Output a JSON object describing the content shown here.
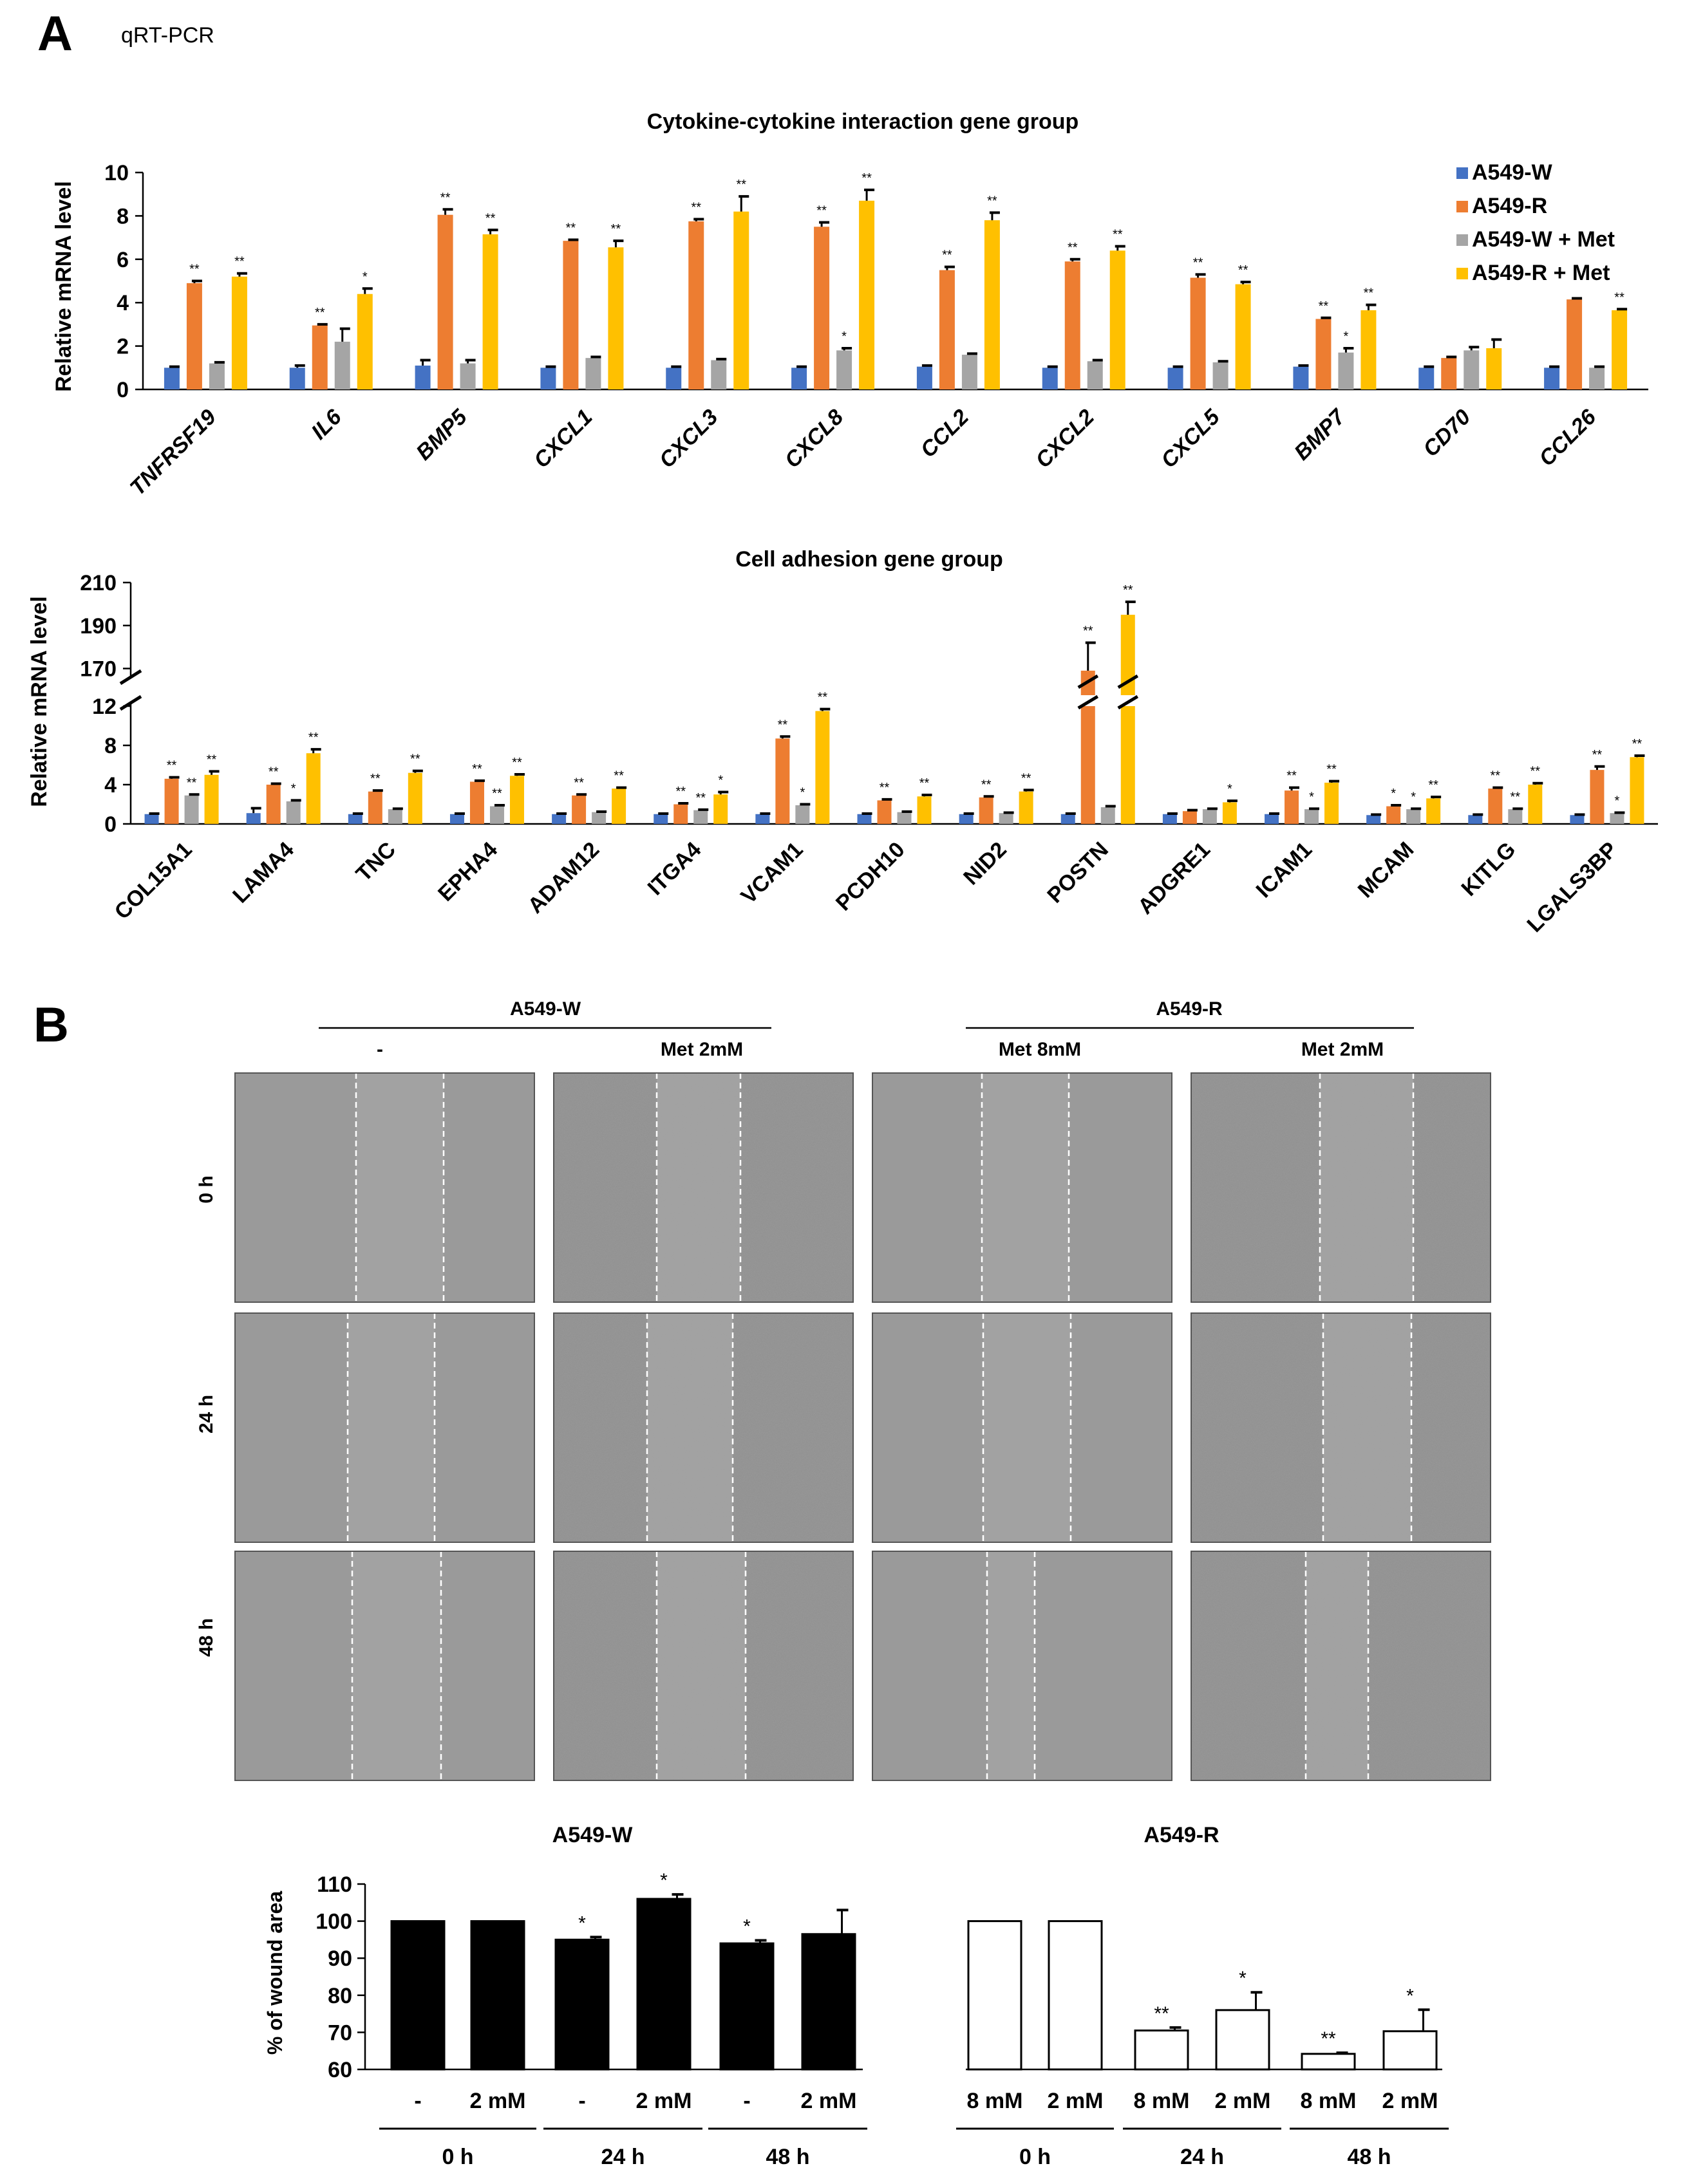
{
  "panel_labels": {
    "a": "A",
    "b": "B"
  },
  "panel_a_subtitle": "qRT-PCR",
  "colors": {
    "w": "#4472C4",
    "r": "#ED7D31",
    "wm": "#A5A5A5",
    "rm": "#FFC000",
    "axis": "#000000",
    "wound_w": "#000000",
    "wound_r": "#FFFFFF"
  },
  "chart_data": [
    {
      "type": "bar",
      "title": "Cytokine-cytokine interaction gene group",
      "ylabel": "Relative mRNA level",
      "ylim": [
        0,
        10
      ],
      "yticks": [
        0,
        2,
        4,
        6,
        8,
        10
      ],
      "legend_position": "top-right",
      "categories": [
        "TNFRSF19",
        "IL6",
        "BMP5",
        "CXCL1",
        "CXCL3",
        "CXCL8",
        "CCL2",
        "CXCL2",
        "CXCL5",
        "BMP7",
        "CD70",
        "CCL26"
      ],
      "series": [
        {
          "name": "A549-W",
          "color": "#4472C4",
          "values": [
            1.0,
            1.0,
            1.1,
            1.0,
            1.0,
            1.0,
            1.05,
            1.0,
            1.0,
            1.05,
            1.0,
            1.0
          ],
          "errors": [
            0.05,
            0.1,
            0.25,
            0.05,
            0.05,
            0.05,
            0.05,
            0.05,
            0.05,
            0.05,
            0.05,
            0.05
          ],
          "sig": [
            "",
            "",
            "",
            "",
            "",
            "",
            "",
            "",
            "",
            "",
            "",
            ""
          ]
        },
        {
          "name": "A549-R",
          "color": "#ED7D31",
          "values": [
            4.9,
            2.95,
            8.05,
            6.85,
            7.75,
            7.5,
            5.5,
            5.9,
            5.15,
            3.25,
            1.45,
            4.15
          ],
          "errors": [
            0.1,
            0.05,
            0.25,
            0.05,
            0.1,
            0.2,
            0.15,
            0.1,
            0.15,
            0.05,
            0.05,
            0.05
          ],
          "sig": [
            "**",
            "**",
            "**",
            "**",
            "**",
            "**",
            "**",
            "**",
            "**",
            "**",
            "",
            ""
          ]
        },
        {
          "name": "A549-W + Met",
          "color": "#A5A5A5",
          "values": [
            1.2,
            2.2,
            1.2,
            1.45,
            1.35,
            1.8,
            1.6,
            1.3,
            1.25,
            1.7,
            1.8,
            1.0
          ],
          "errors": [
            0.05,
            0.6,
            0.15,
            0.05,
            0.05,
            0.1,
            0.05,
            0.05,
            0.05,
            0.2,
            0.15,
            0.05
          ],
          "sig": [
            "",
            "",
            "",
            "",
            "",
            "*",
            "",
            "",
            "",
            "*",
            "",
            ""
          ]
        },
        {
          "name": "A549-R + Met",
          "color": "#FFC000",
          "values": [
            5.2,
            4.4,
            7.15,
            6.55,
            8.2,
            8.7,
            7.8,
            6.4,
            4.85,
            3.65,
            1.9,
            3.65
          ],
          "errors": [
            0.15,
            0.25,
            0.2,
            0.3,
            0.7,
            0.5,
            0.35,
            0.2,
            0.1,
            0.25,
            0.4,
            0.05
          ],
          "sig": [
            "**",
            "*",
            "**",
            "**",
            "**",
            "**",
            "**",
            "**",
            "**",
            "**",
            "",
            "**"
          ]
        }
      ]
    },
    {
      "type": "bar",
      "title": "Cell adhesion gene group",
      "ylabel": "Relative mRNA level",
      "axis_break": true,
      "ylim_lower": [
        0,
        12
      ],
      "yticks_lower": [
        0,
        4,
        8,
        12
      ],
      "ylim_upper": [
        160,
        210
      ],
      "yticks_upper": [
        170,
        190,
        210
      ],
      "categories": [
        "COL15A1",
        "LAMA4",
        "TNC",
        "EPHA4",
        "ADAM12",
        "ITGA4",
        "VCAM1",
        "PCDH10",
        "NID2",
        "POSTN",
        "ADGRE1",
        "ICAM1",
        "MCAM",
        "KITLG",
        "LGALS3BP"
      ],
      "series": [
        {
          "name": "A549-W",
          "color": "#4472C4",
          "values": [
            1.0,
            1.1,
            1.0,
            1.0,
            1.0,
            1.0,
            1.0,
            1.0,
            1.0,
            1.0,
            1.0,
            1.0,
            0.9,
            0.9,
            0.9
          ],
          "errors": [
            0.05,
            0.5,
            0.05,
            0.05,
            0.05,
            0.05,
            0.05,
            0.05,
            0.05,
            0.05,
            0.05,
            0.05,
            0.05,
            0.05,
            0.05
          ],
          "sig": [
            "",
            "",
            "",
            "",
            "",
            "",
            "",
            "",
            "",
            "",
            "",
            "",
            "",
            "",
            ""
          ]
        },
        {
          "name": "A549-R",
          "color": "#ED7D31",
          "values": [
            4.6,
            4.0,
            3.3,
            4.3,
            2.9,
            2.0,
            8.7,
            2.4,
            2.7,
            169,
            1.3,
            3.4,
            1.8,
            3.6,
            5.5
          ],
          "errors": [
            0.15,
            0.1,
            0.1,
            0.1,
            0.1,
            0.1,
            0.2,
            0.1,
            0.1,
            13,
            0.1,
            0.3,
            0.1,
            0.1,
            0.35
          ],
          "sig": [
            "**",
            "**",
            "**",
            "**",
            "**",
            "**",
            "**",
            "**",
            "**",
            "**",
            "",
            "**",
            "*",
            "**",
            "**"
          ]
        },
        {
          "name": "A549-W + Met",
          "color": "#A5A5A5",
          "values": [
            2.9,
            2.3,
            1.5,
            1.8,
            1.2,
            1.4,
            1.9,
            1.2,
            1.1,
            1.7,
            1.5,
            1.5,
            1.5,
            1.5,
            1.1
          ],
          "errors": [
            0.1,
            0.1,
            0.05,
            0.1,
            0.05,
            0.05,
            0.1,
            0.05,
            0.05,
            0.1,
            0.05,
            0.05,
            0.05,
            0.05,
            0.05
          ],
          "sig": [
            "**",
            "*",
            "",
            "**",
            "",
            "**",
            "*",
            "",
            "",
            "",
            "",
            "*",
            "*",
            "**",
            "*"
          ]
        },
        {
          "name": "A549-R + Met",
          "color": "#FFC000",
          "values": [
            5.0,
            7.2,
            5.2,
            4.9,
            3.6,
            3.0,
            11.5,
            2.8,
            3.3,
            195,
            2.2,
            4.2,
            2.6,
            4.0,
            6.8
          ],
          "errors": [
            0.35,
            0.4,
            0.2,
            0.15,
            0.1,
            0.25,
            0.2,
            0.15,
            0.15,
            6,
            0.15,
            0.15,
            0.15,
            0.15,
            0.15
          ],
          "sig": [
            "**",
            "**",
            "**",
            "**",
            "**",
            "*",
            "**",
            "**",
            "**",
            "**",
            "*",
            "**",
            "**",
            "**",
            "**"
          ]
        }
      ]
    },
    {
      "type": "bar",
      "title": "A549-W",
      "ylabel": "% of wound area",
      "ylim": [
        60,
        110
      ],
      "yticks": [
        60,
        70,
        80,
        90,
        100,
        110
      ],
      "categories": [
        "-",
        "2 mM",
        "-",
        "2 mM",
        "-",
        "2 mM"
      ],
      "groups": [
        "0 h",
        "24 h",
        "48 h"
      ],
      "values": [
        100,
        100,
        95,
        106,
        94,
        96.5
      ],
      "errors": [
        0,
        0,
        0.7,
        1.2,
        0.8,
        6.5
      ],
      "sig": [
        "",
        "",
        "*",
        "*",
        "*",
        ""
      ],
      "fill": "#000000"
    },
    {
      "type": "bar",
      "title": "A549-R",
      "ylabel": "% of wound area",
      "ylim": [
        60,
        110
      ],
      "categories": [
        "8 mM",
        "2 mM",
        "8 mM",
        "2 mM",
        "8 mM",
        "2 mM"
      ],
      "groups": [
        "0 h",
        "24 h",
        "48 h"
      ],
      "values": [
        100,
        100,
        70.5,
        76,
        64.2,
        70.3
      ],
      "errors": [
        0,
        0,
        0.8,
        4.8,
        0.3,
        5.8
      ],
      "sig": [
        "",
        "",
        "**",
        "*",
        "**",
        "*"
      ],
      "fill": "#FFFFFF"
    }
  ],
  "micrographs": {
    "group_w": "A549-W",
    "group_r": "A549-R",
    "columns": [
      "-",
      "Met 2mM",
      "Met 8mM",
      "Met 2mM"
    ],
    "rows": [
      "0 h",
      "24 h",
      "48 h"
    ]
  }
}
